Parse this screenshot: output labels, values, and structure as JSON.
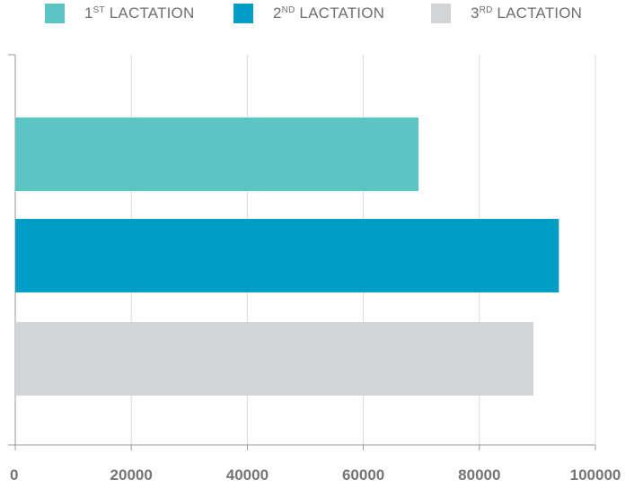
{
  "legend": [
    {
      "num": "1",
      "sup": "ST",
      "text": " LACTATION",
      "color": "#5bc5c5"
    },
    {
      "num": "2",
      "sup": "ND",
      "text": " LACTATION",
      "color": "#009dc7"
    },
    {
      "num": "3",
      "sup": "RD",
      "text": " LACTATION",
      "color": "#d3d4d6"
    }
  ],
  "chart_data": {
    "type": "bar",
    "orientation": "horizontal",
    "title": "",
    "xlabel": "",
    "ylabel": "",
    "xlim": [
      0,
      100000
    ],
    "grid": true,
    "legend_position": "top",
    "x_ticks": [
      "0",
      "20000",
      "40000",
      "60000",
      "80000",
      "100000"
    ],
    "series": [
      {
        "name": "1ST LACTATION",
        "value": 69500,
        "color": "#5bc5c5"
      },
      {
        "name": "2ND LACTATION",
        "value": 93700,
        "color": "#009dc7"
      },
      {
        "name": "3RD LACTATION",
        "value": 89300,
        "color": "#d3d4d6"
      }
    ]
  }
}
